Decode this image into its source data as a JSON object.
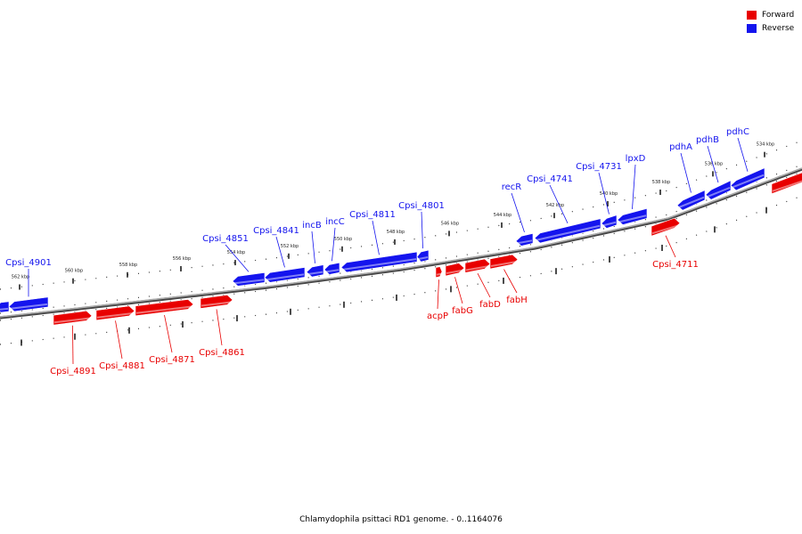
{
  "colors": {
    "forward": "#e80000",
    "reverse": "#1414ee",
    "backbone": "#888888"
  },
  "legend": [
    {
      "label": "Forward",
      "color": "#e80000"
    },
    {
      "label": "Reverse",
      "color": "#1414ee"
    }
  ],
  "caption": "Chlamydophila psittaci RD1 genome. - 0..1164076",
  "ticks": [
    "534 kbp",
    "536 kbp",
    "538 kbp",
    "540 kbp",
    "542 kbp",
    "544 kbp",
    "546 kbp",
    "548 kbp",
    "550 kbp",
    "552 kbp",
    "554 kbp",
    "556 kbp",
    "558 kbp",
    "560 kbp",
    "562 kbp"
  ],
  "genes": [
    {
      "name": "Cpsi_4901",
      "strand": "reverse"
    },
    {
      "name": "Cpsi_4891",
      "strand": "forward"
    },
    {
      "name": "Cpsi_4881",
      "strand": "forward"
    },
    {
      "name": "Cpsi_4871",
      "strand": "forward"
    },
    {
      "name": "Cpsi_4861",
      "strand": "forward"
    },
    {
      "name": "Cpsi_4851",
      "strand": "reverse"
    },
    {
      "name": "Cpsi_4841",
      "strand": "reverse"
    },
    {
      "name": "incB",
      "strand": "reverse"
    },
    {
      "name": "incC",
      "strand": "reverse"
    },
    {
      "name": "Cpsi_4811",
      "strand": "reverse"
    },
    {
      "name": "Cpsi_4801",
      "strand": "reverse"
    },
    {
      "name": "acpP",
      "strand": "forward"
    },
    {
      "name": "fabG",
      "strand": "forward"
    },
    {
      "name": "fabD",
      "strand": "forward"
    },
    {
      "name": "fabH",
      "strand": "forward"
    },
    {
      "name": "recR",
      "strand": "reverse"
    },
    {
      "name": "Cpsi_4741",
      "strand": "reverse"
    },
    {
      "name": "Cpsi_4731",
      "strand": "reverse"
    },
    {
      "name": "lpxD",
      "strand": "reverse"
    },
    {
      "name": "pdhA",
      "strand": "reverse"
    },
    {
      "name": "pdhB",
      "strand": "reverse"
    },
    {
      "name": "pdhC",
      "strand": "reverse"
    },
    {
      "name": "Cpsi_4711",
      "strand": "forward"
    }
  ]
}
